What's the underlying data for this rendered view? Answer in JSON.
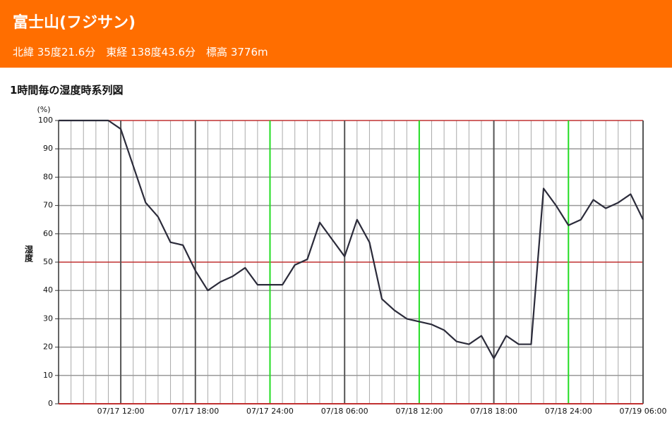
{
  "header": {
    "title": "富士山(フジサン)",
    "subtitle": "北緯 35度21.6分　東経 138度43.6分　標高 3776m"
  },
  "chart_data": {
    "type": "line",
    "title": "1時間毎の湿度時系列図",
    "y_unit": "(%)",
    "y_label": "湿度",
    "x": [
      7,
      8,
      9,
      10,
      11,
      12,
      13,
      14,
      15,
      16,
      17,
      18,
      19,
      20,
      21,
      22,
      23,
      24,
      25,
      26,
      27,
      28,
      29,
      30,
      31,
      32,
      33,
      34,
      35,
      36,
      37,
      38,
      39,
      40,
      41,
      42,
      43,
      44,
      45,
      46,
      47,
      48,
      49,
      50,
      51,
      52,
      53,
      54
    ],
    "series": [
      {
        "name": "湿度",
        "color": "#2b2b3a",
        "values": [
          100,
          100,
          100,
          100,
          100,
          97,
          84,
          71,
          66,
          57,
          56,
          47,
          40,
          43,
          45,
          48,
          42,
          42,
          42,
          49,
          51,
          64,
          58,
          52,
          65,
          57,
          37,
          33,
          30,
          29,
          28,
          26,
          22,
          21,
          24,
          16,
          24,
          21,
          21,
          76,
          70,
          63,
          65,
          72,
          69,
          71,
          74,
          65
        ]
      }
    ],
    "xlim": [
      7,
      54
    ],
    "xticks": [
      {
        "value": 12,
        "label": "07/17 12:00"
      },
      {
        "value": 18,
        "label": "07/17 18:00"
      },
      {
        "value": 24,
        "label": "07/17 24:00"
      },
      {
        "value": 30,
        "label": "07/18 06:00"
      },
      {
        "value": 36,
        "label": "07/18 12:00"
      },
      {
        "value": 42,
        "label": "07/18 18:00"
      },
      {
        "value": 48,
        "label": "07/18 24:00"
      },
      {
        "value": 54,
        "label": "07/19 06:00"
      }
    ],
    "xtick_line_colors": [
      "#555555",
      "#555555",
      "#22dd22",
      "#555555",
      "#22dd22",
      "#555555",
      "#22dd22",
      "#555555"
    ],
    "minor_grid_step": 1,
    "ylim": [
      0,
      100
    ],
    "yticks": [
      0,
      10,
      20,
      30,
      40,
      50,
      60,
      70,
      80,
      90,
      100
    ],
    "ytick_line_colors": [
      "#c03030",
      "#999999",
      "#999999",
      "#999999",
      "#999999",
      "#c03030",
      "#999999",
      "#999999",
      "#999999",
      "#999999",
      "#c03030"
    ],
    "grid": true
  }
}
